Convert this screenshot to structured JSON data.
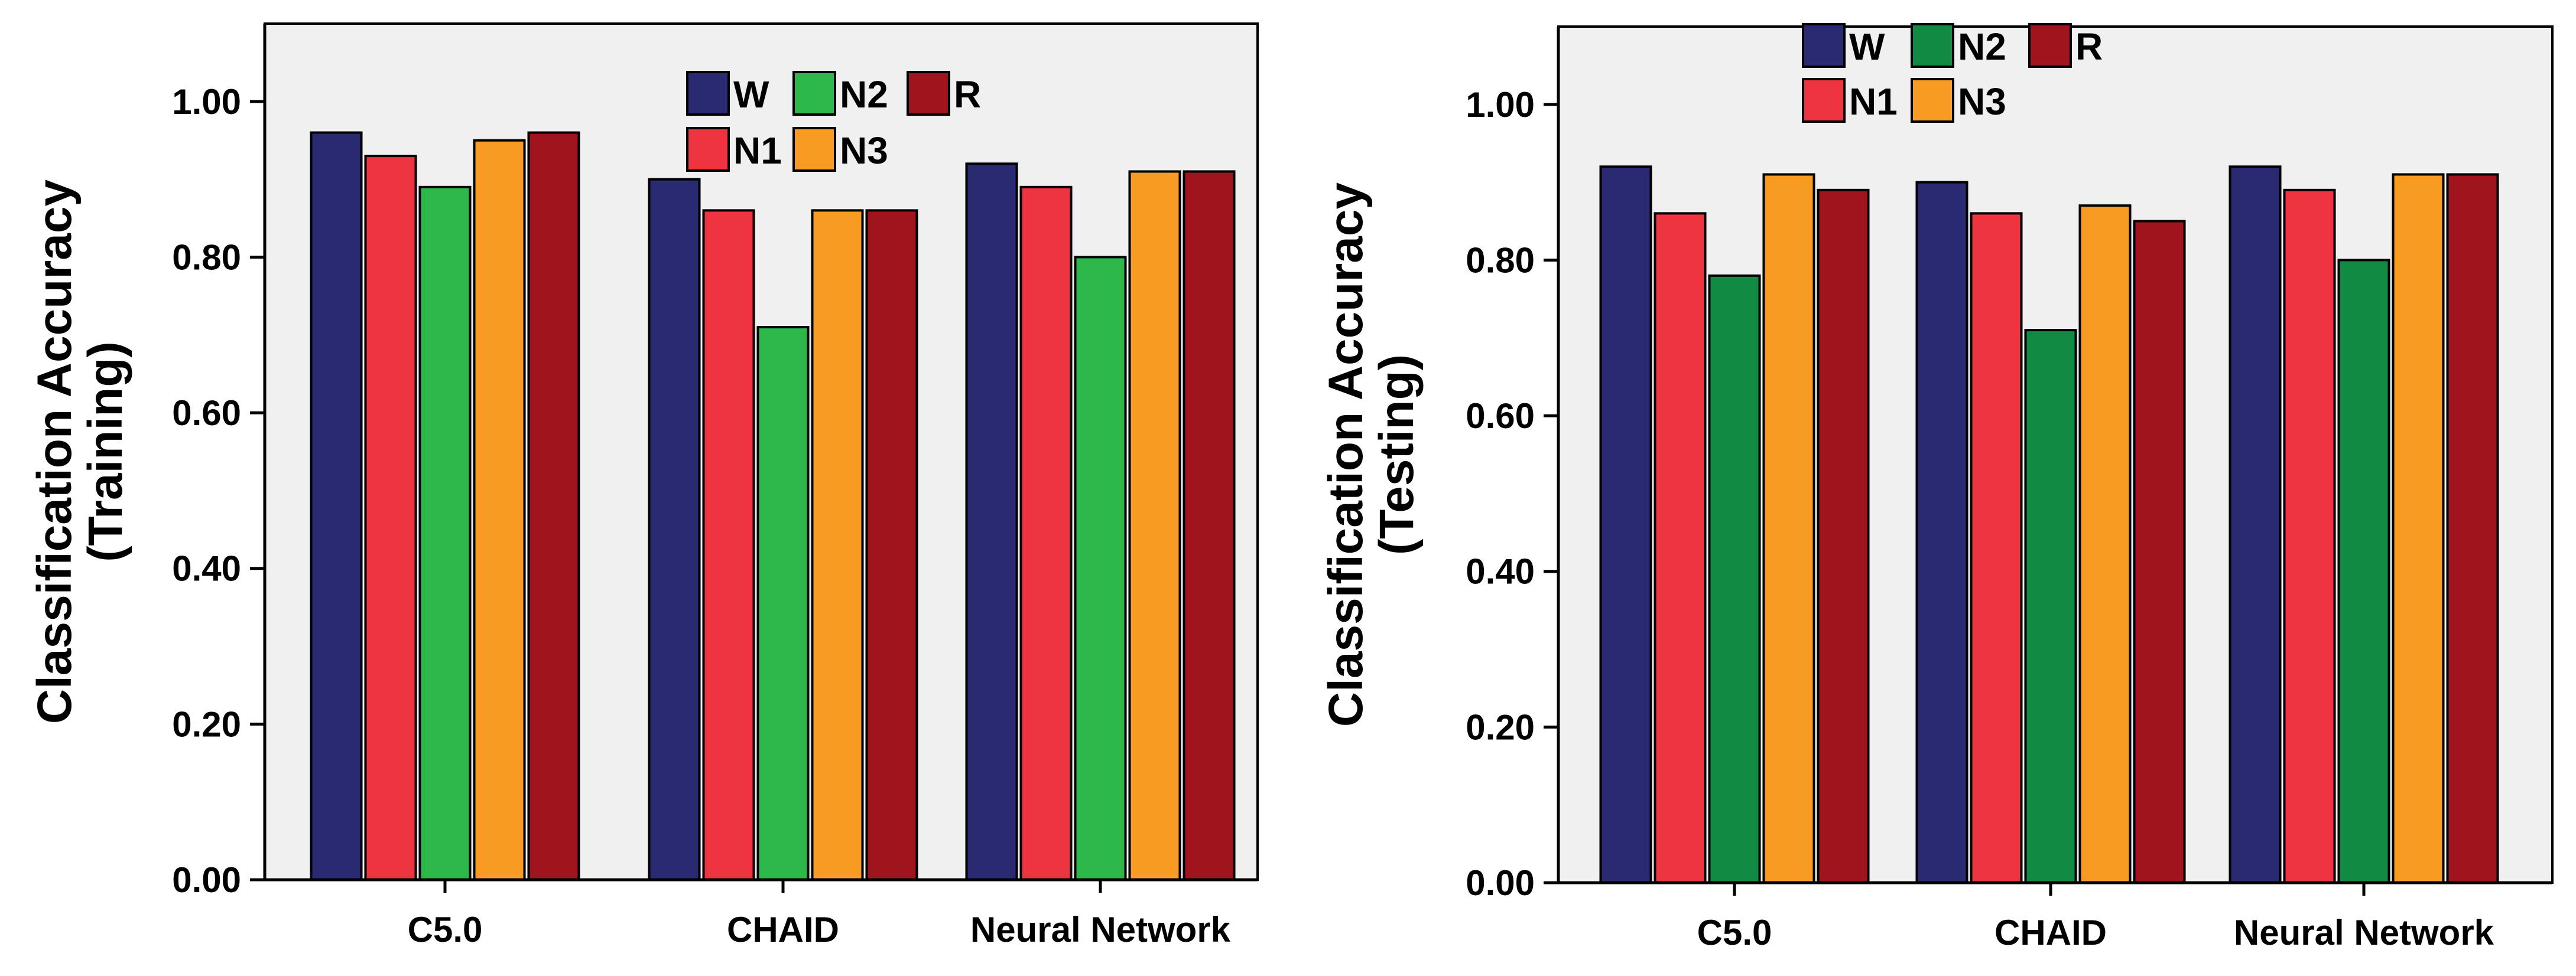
{
  "chart_data": [
    {
      "type": "bar",
      "categories": [
        "C5.0",
        "CHAID",
        "Neural Network"
      ],
      "series": [
        {
          "name": "W",
          "color": "#2a2a72",
          "values": [
            0.96,
            0.9,
            0.92
          ]
        },
        {
          "name": "N1",
          "color": "#ee3440",
          "values": [
            0.93,
            0.86,
            0.89
          ]
        },
        {
          "name": "N2",
          "color": "#2eb84a",
          "values": [
            0.89,
            0.71,
            0.8
          ]
        },
        {
          "name": "N3",
          "color": "#f79b23",
          "values": [
            0.95,
            0.86,
            0.91
          ]
        },
        {
          "name": "R",
          "color": "#a0151d",
          "values": [
            0.96,
            0.86,
            0.91
          ]
        }
      ],
      "ylabel_line1": "Classification Accuracy",
      "ylabel_line2": "(Training)",
      "ylim": [
        0,
        1.1
      ],
      "yticks": [
        0,
        0.2,
        0.4,
        0.6,
        0.8,
        1.0
      ],
      "ytick_labels": [
        "0.00",
        "0.20",
        "0.40",
        "0.60",
        "0.80",
        "1.00"
      ],
      "legend_position": "top-center",
      "background": "#f0f0f0"
    },
    {
      "type": "bar",
      "categories": [
        "C5.0",
        "CHAID",
        "Neural Network"
      ],
      "series": [
        {
          "name": "W",
          "color": "#2a2a72",
          "values": [
            0.92,
            0.9,
            0.92
          ]
        },
        {
          "name": "N1",
          "color": "#ee3440",
          "values": [
            0.86,
            0.86,
            0.89
          ]
        },
        {
          "name": "N2",
          "color": "#118a44",
          "values": [
            0.78,
            0.71,
            0.8
          ]
        },
        {
          "name": "N3",
          "color": "#f79b23",
          "values": [
            0.91,
            0.87,
            0.91
          ]
        },
        {
          "name": "R",
          "color": "#a0151d",
          "values": [
            0.89,
            0.85,
            0.91
          ]
        }
      ],
      "ylabel_line1": "Classification Accuracy",
      "ylabel_line2": "(Testing)",
      "ylim": [
        0,
        1.1
      ],
      "yticks": [
        0,
        0.2,
        0.4,
        0.6,
        0.8,
        1.0
      ],
      "ytick_labels": [
        "0.00",
        "0.20",
        "0.40",
        "0.60",
        "0.80",
        "1.00"
      ],
      "legend_position": "top-center",
      "background": "#f0f0f0"
    }
  ]
}
